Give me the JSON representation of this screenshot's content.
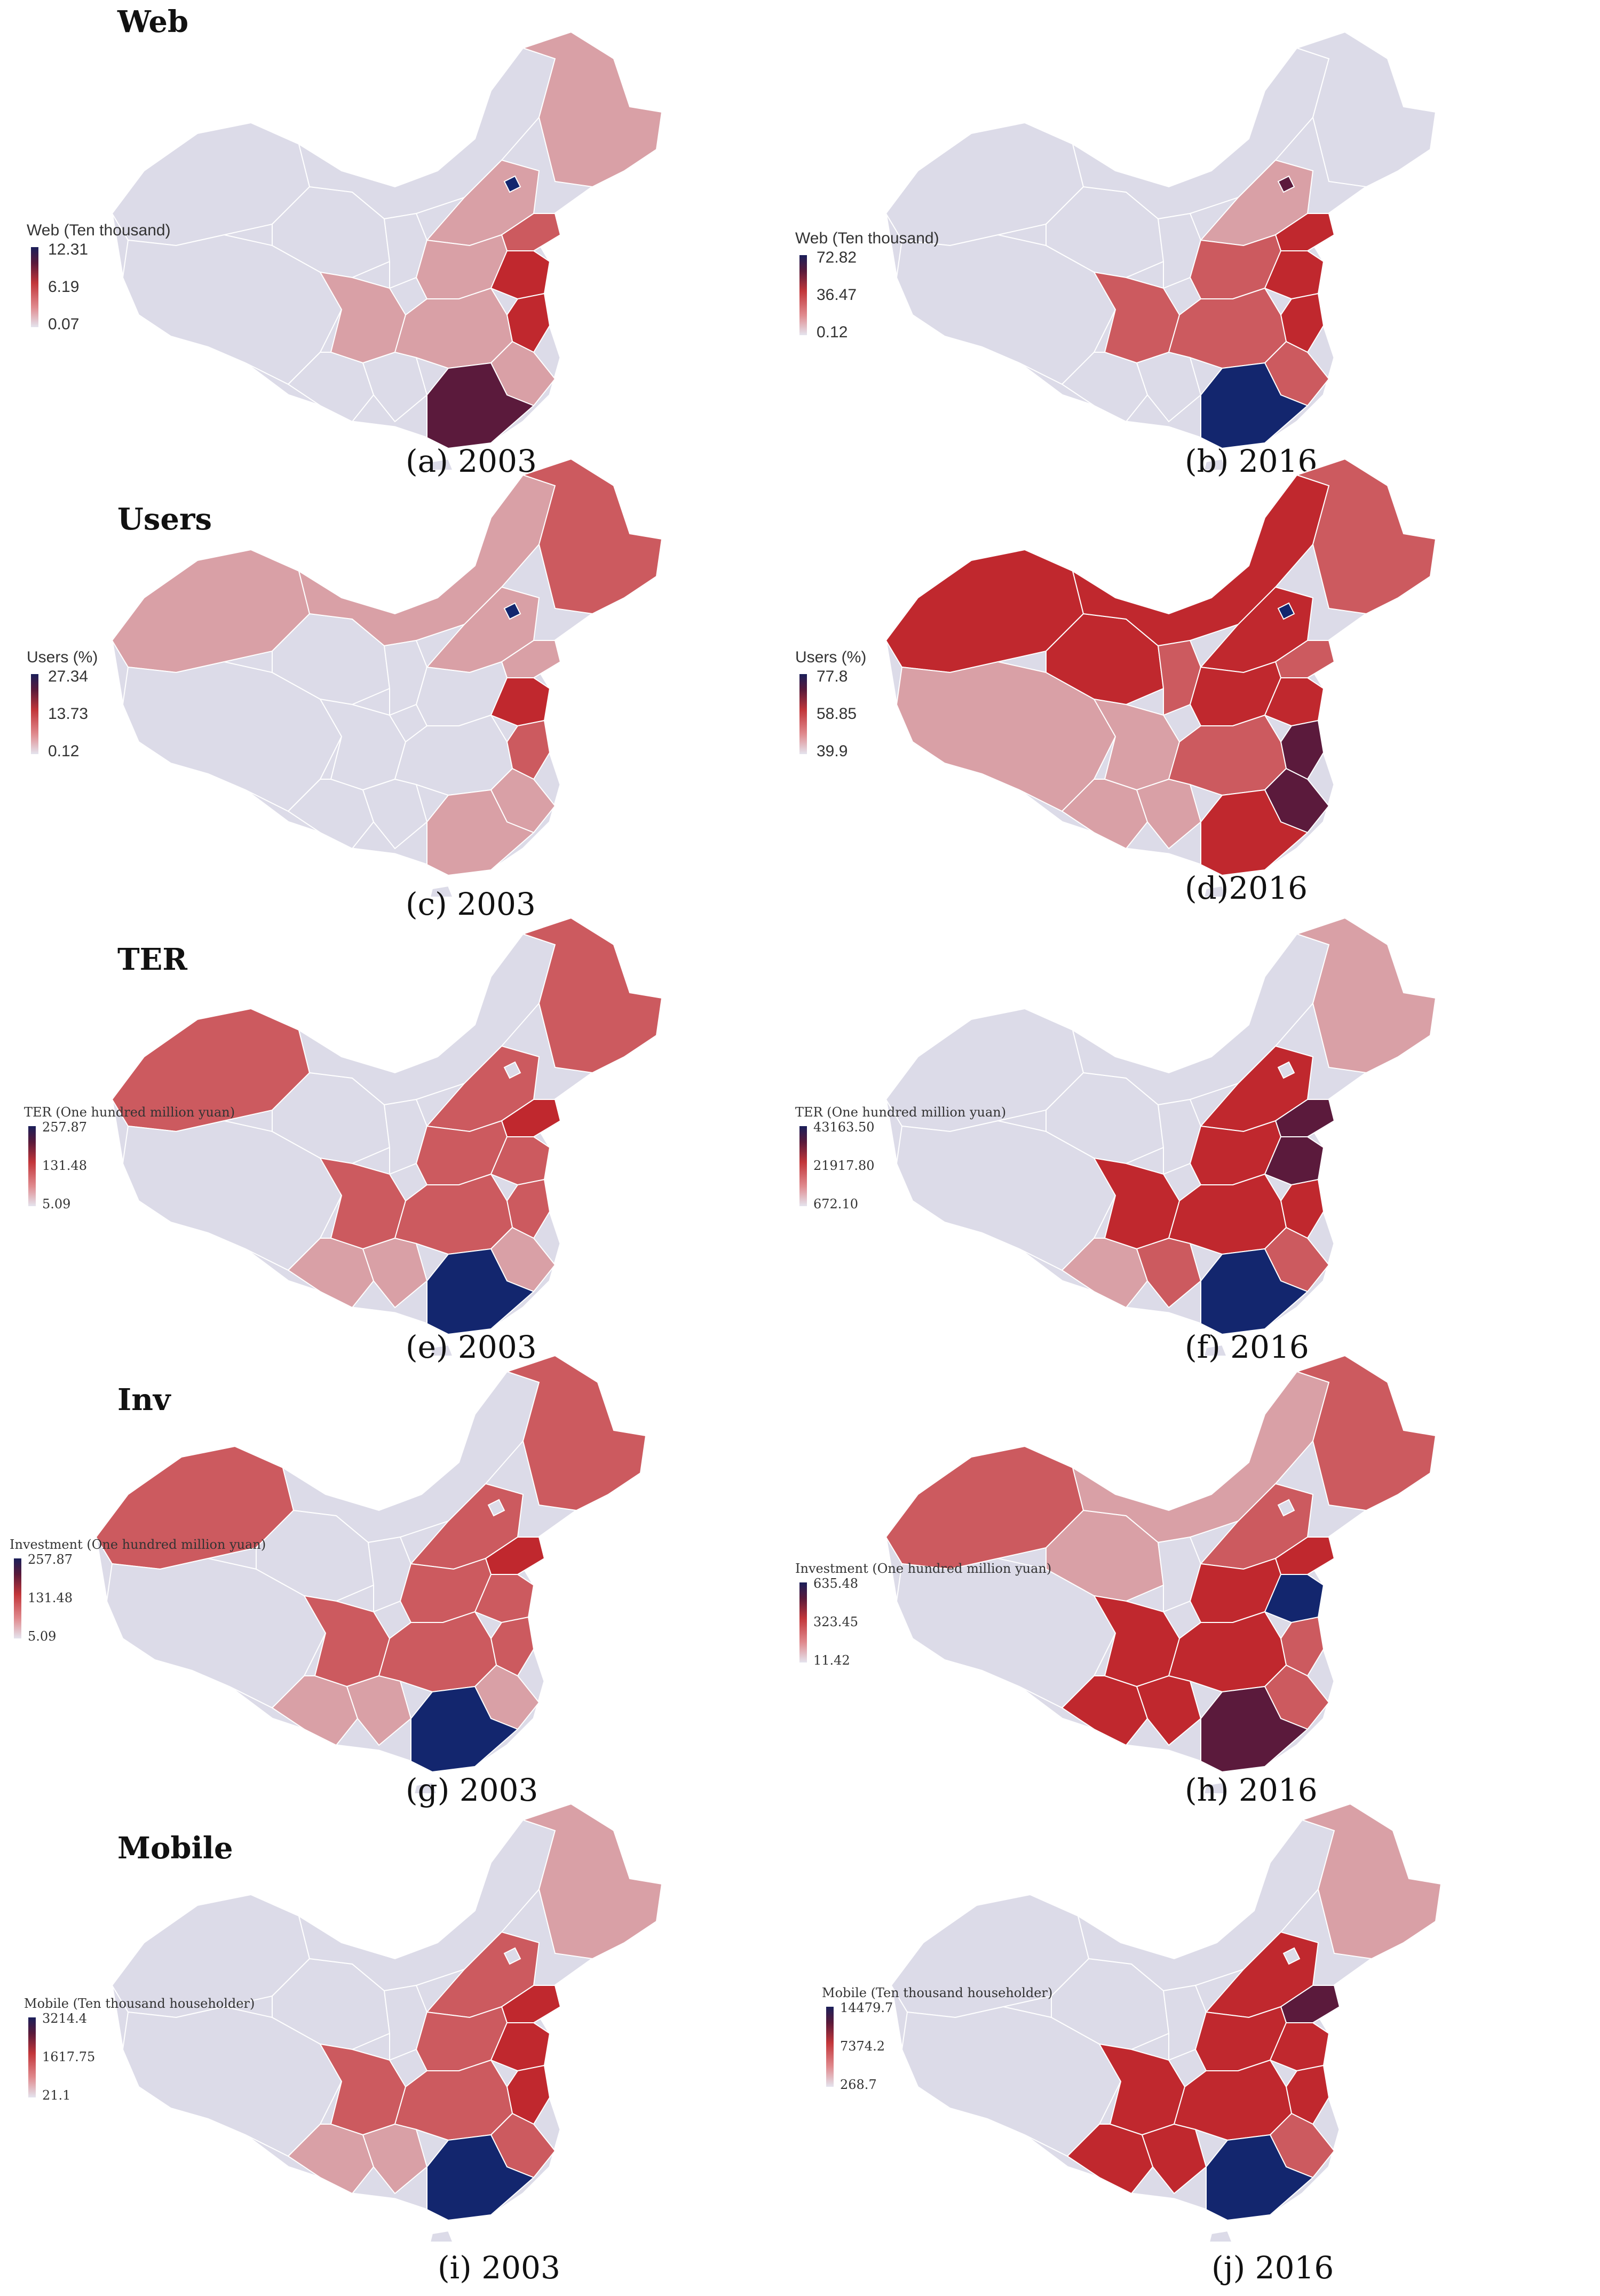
{
  "rows": [
    {
      "title": "Web",
      "left": {
        "caption": "(a) 2003",
        "legend_title": "Web (Ten thousand)",
        "values": [
          "12.31",
          "6.19",
          "0.07"
        ]
      },
      "right": {
        "caption": "(b) 2016",
        "legend_title": "Web (Ten thousand)",
        "values": [
          "72.82",
          "36.47",
          "0.12"
        ]
      }
    },
    {
      "title": "Users",
      "left": {
        "caption": "(c) 2003",
        "legend_title": "Users (%)",
        "values": [
          "27.34",
          "13.73",
          "0.12"
        ]
      },
      "right": {
        "caption": "(d)2016",
        "legend_title": "Users (%)",
        "values": [
          "77.8",
          "58.85",
          "39.9"
        ]
      }
    },
    {
      "title": "TER",
      "left": {
        "caption": "(e) 2003",
        "legend_title": "TER (One hundred million yuan)",
        "values": [
          "257.87",
          "131.48",
          "5.09"
        ]
      },
      "right": {
        "caption": "(f) 2016",
        "legend_title": "TER (One hundred million yuan)",
        "values": [
          "43163.50",
          "21917.80",
          "672.10"
        ]
      }
    },
    {
      "title": "Inv",
      "left": {
        "caption": "(g) 2003",
        "legend_title": "Investment (One hundred million yuan)",
        "values": [
          "257.87",
          "131.48",
          "5.09"
        ]
      },
      "right": {
        "caption": "(h) 2016",
        "legend_title": "Investment (One hundred million yuan)",
        "values": [
          "635.48",
          "323.45",
          "11.42"
        ]
      }
    },
    {
      "title": "Mobile",
      "left": {
        "caption": "(i) 2003",
        "legend_title": "Mobile (Ten thousand householder)",
        "values": [
          "3214.4",
          "1617.75",
          "21.1"
        ]
      },
      "right": {
        "caption": "(j) 2016",
        "legend_title": "Mobile (Ten thousand householder)",
        "values": [
          "14479.7",
          "7374.2",
          "268.7"
        ]
      }
    }
  ],
  "colors": {
    "low": "#dcdbe8",
    "mid_low": "#d9a0a6",
    "mid": "#cc5a5f",
    "high": "#c0282e",
    "very_high": "#5b1a3c",
    "top": "#13266e"
  }
}
